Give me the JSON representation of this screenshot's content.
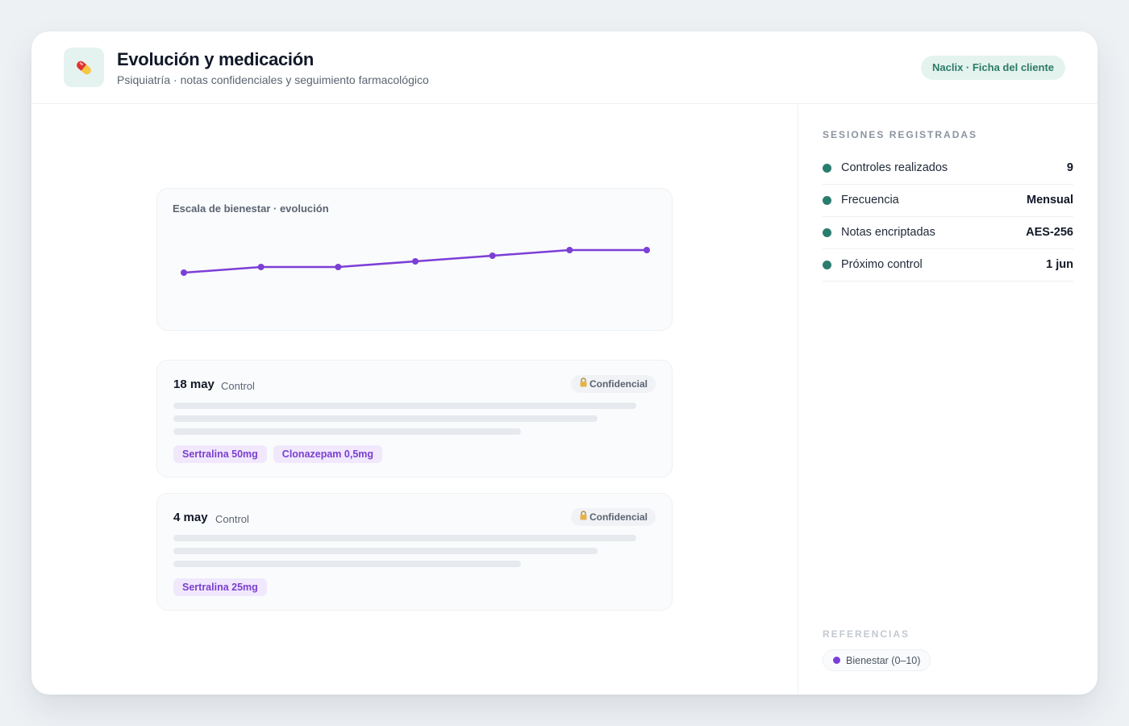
{
  "header": {
    "title": "Evolución y medicación",
    "subtitle": "Psiquiatría · notas confidenciales y seguimiento farmacológico",
    "badge": "Naclix · Ficha del cliente",
    "icon": "pill-icon"
  },
  "chart_data": {
    "type": "line",
    "title": "Escala de bienestar · evolución",
    "series": [
      {
        "name": "Bienestar (0–10)",
        "values": [
          4.0,
          4.5,
          4.5,
          5.0,
          5.5,
          6.0,
          6.0
        ]
      }
    ],
    "x": [
      1,
      2,
      3,
      4,
      5,
      6,
      7
    ],
    "ylim": [
      0,
      10
    ],
    "grid": false,
    "color": "#7c3fd6"
  },
  "notes": [
    {
      "date": "18 may",
      "type": "Control",
      "badge": "Confidencial",
      "meds": [
        "Sertralina 50mg",
        "Clonazepam 0,5mg"
      ]
    },
    {
      "date": "4 may",
      "type": "Control",
      "badge": "Confidencial",
      "meds": [
        "Sertralina 25mg"
      ]
    }
  ],
  "sidebar": {
    "sessions_heading": "SESIONES REGISTRADAS",
    "stats": [
      {
        "label": "Controles realizados",
        "value": "9"
      },
      {
        "label": "Frecuencia",
        "value": "Mensual"
      },
      {
        "label": "Notas encriptadas",
        "value": "AES-256"
      },
      {
        "label": "Próximo control",
        "value": "1 jun"
      }
    ],
    "references_heading": "REFERENCIAS",
    "legend_label": "Bienestar (0–10)"
  },
  "colors": {
    "accent": "#7c3fd6",
    "teal": "#2a7d6e",
    "badge_bg": "#e4f3ee"
  }
}
